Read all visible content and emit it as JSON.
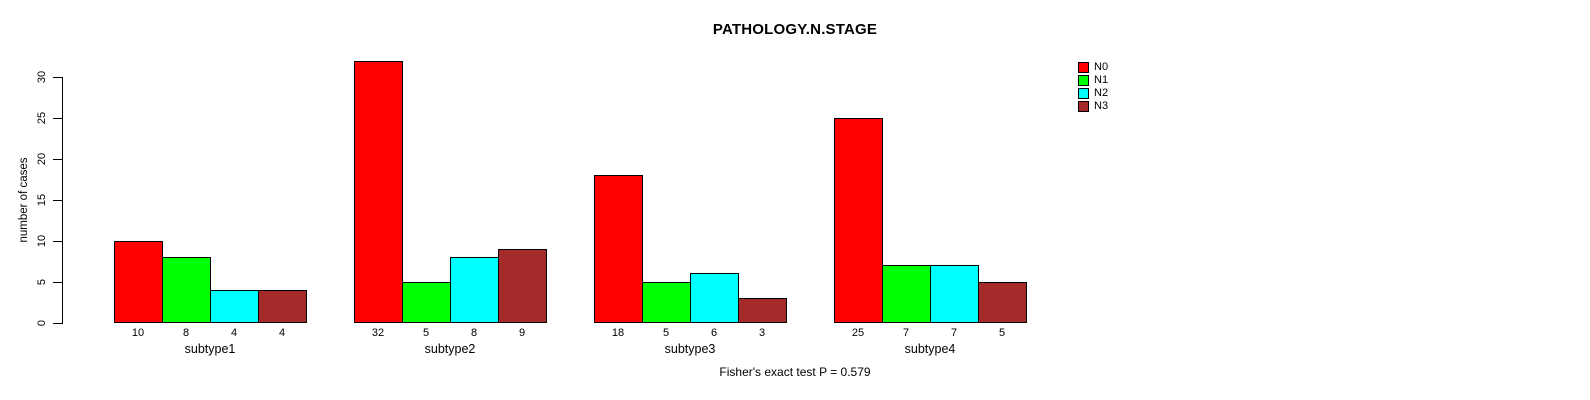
{
  "title": "PATHOLOGY.N.STAGE",
  "footer": "Fisher's exact test P = 0.579",
  "chart_data": {
    "type": "bar",
    "title": "PATHOLOGY.N.STAGE",
    "xlabel": "",
    "ylabel": "number of cases",
    "categories": [
      "subtype1",
      "subtype2",
      "subtype3",
      "subtype4"
    ],
    "series": [
      {
        "name": "N0",
        "color": "#FF0000",
        "values": [
          10,
          32,
          18,
          25
        ]
      },
      {
        "name": "N1",
        "color": "#00FF00",
        "values": [
          8,
          5,
          5,
          7
        ]
      },
      {
        "name": "N2",
        "color": "#00FFFF",
        "values": [
          4,
          8,
          6,
          7
        ]
      },
      {
        "name": "N3",
        "color": "#A52A2A",
        "values": [
          4,
          9,
          3,
          5
        ]
      }
    ],
    "bar_value_labels_shown": true,
    "yticks": [
      0,
      5,
      10,
      15,
      20,
      25,
      30
    ],
    "ylim": [
      0,
      32
    ],
    "grid": false,
    "legend_position": "topright",
    "annotation": "Fisher's exact test P = 0.579"
  }
}
